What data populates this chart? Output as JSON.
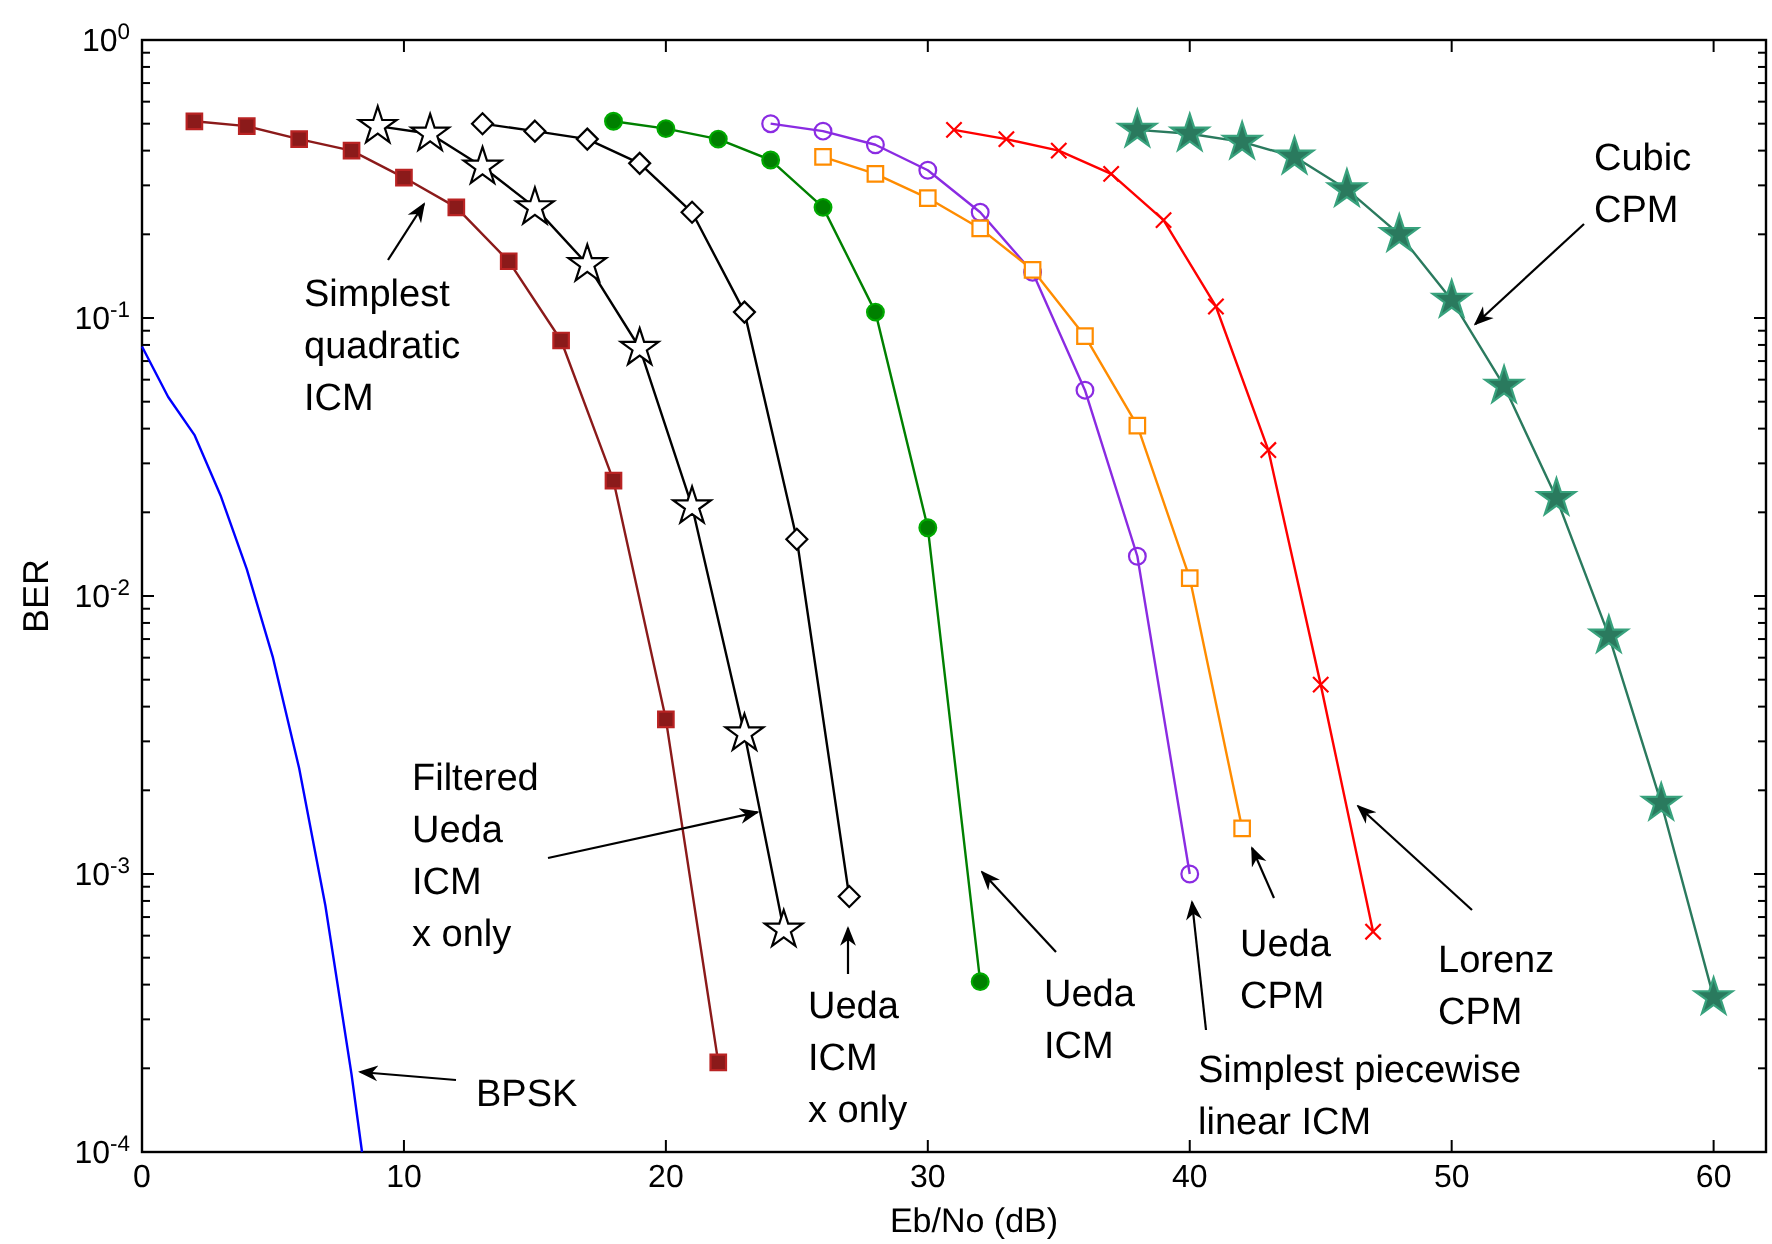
{
  "chart_data": {
    "type": "line",
    "xlabel": "Eb/No (dB)",
    "ylabel": "BER",
    "log": "y",
    "grid": false,
    "xlim": [
      0,
      62
    ],
    "xticks": [
      0,
      10,
      20,
      30,
      40,
      50,
      60
    ],
    "ylim": [
      0.0001,
      1
    ],
    "yticks": [
      {
        "value": 0.0001,
        "label": "10$^{-4}$"
      },
      {
        "value": 0.0002,
        "label": null
      },
      {
        "value": 0.0003,
        "label": null
      },
      {
        "value": 0.0004,
        "label": null
      },
      {
        "value": 0.0005,
        "label": null
      },
      {
        "value": 0.0006,
        "label": null
      },
      {
        "value": 0.0007,
        "label": null
      },
      {
        "value": 0.0008,
        "label": null
      },
      {
        "value": 0.0009,
        "label": null
      },
      {
        "value": 0.001,
        "label": "10$^{-3}$"
      },
      {
        "value": 0.002,
        "label": null
      },
      {
        "value": 0.003,
        "label": null
      },
      {
        "value": 0.004,
        "label": null
      },
      {
        "value": 0.005,
        "label": null
      },
      {
        "value": 0.006,
        "label": null
      },
      {
        "value": 0.007,
        "label": null
      },
      {
        "value": 0.008,
        "label": null
      },
      {
        "value": 0.009,
        "label": null
      },
      {
        "value": 0.01,
        "label": "10$^{-2}$"
      },
      {
        "value": 0.02,
        "label": null
      },
      {
        "value": 0.03,
        "label": null
      },
      {
        "value": 0.04,
        "label": null
      },
      {
        "value": 0.05,
        "label": null
      },
      {
        "value": 0.06,
        "label": null
      },
      {
        "value": 0.07,
        "label": null
      },
      {
        "value": 0.08,
        "label": null
      },
      {
        "value": 0.09,
        "label": null
      },
      {
        "value": 0.1,
        "label": "10$^{-1}$"
      },
      {
        "value": 0.2,
        "label": null
      },
      {
        "value": 0.3,
        "label": null
      },
      {
        "value": 0.4,
        "label": null
      },
      {
        "value": 0.5,
        "label": null
      },
      {
        "value": 0.6,
        "label": null
      },
      {
        "value": 0.7,
        "label": null
      },
      {
        "value": 0.8,
        "label": null
      },
      {
        "value": 0.9,
        "label": null
      },
      {
        "value": 1,
        "label": "10$^{0}$"
      }
    ],
    "series": [
      {
        "color": "#0000ff",
        "marker": "none",
        "x": [
          0,
          1,
          2,
          3,
          4,
          5,
          6,
          7,
          8,
          8.4
        ],
        "values": [
          0.079,
          0.052,
          0.038,
          0.023,
          0.0125,
          0.006,
          0.0024,
          0.00077,
          0.00019,
          0.0001
        ]
      },
      {
        "color": "#8b1a1a",
        "marker": "square",
        "x": [
          2,
          4,
          6,
          8,
          10,
          12,
          14,
          16,
          18,
          20,
          22
        ],
        "values": [
          0.51,
          0.49,
          0.44,
          0.4,
          0.32,
          0.25,
          0.16,
          0.083,
          0.026,
          0.0036,
          0.00021
        ]
      },
      {
        "color": "#000000",
        "marker": "star",
        "x": [
          9,
          11,
          13,
          15,
          17,
          19,
          21,
          23,
          24.5
        ],
        "values": [
          0.49,
          0.46,
          0.35,
          0.25,
          0.156,
          0.078,
          0.021,
          0.0032,
          0.00063
        ]
      },
      {
        "color": "#000000",
        "marker": "diamond",
        "x": [
          13,
          15,
          17,
          19,
          21,
          23,
          25,
          27
        ],
        "values": [
          0.5,
          0.47,
          0.44,
          0.36,
          0.24,
          0.105,
          0.016,
          0.00083
        ]
      },
      {
        "color": "#008000",
        "marker": "circle",
        "x": [
          18,
          20,
          22,
          24,
          26,
          28,
          30,
          32
        ],
        "values": [
          0.51,
          0.48,
          0.44,
          0.37,
          0.25,
          0.105,
          0.0176,
          0.00041
        ]
      },
      {
        "color": "#8a2be2",
        "marker": "circle",
        "x": [
          24,
          26,
          28,
          30,
          32,
          34,
          36,
          38,
          40
        ],
        "values": [
          0.5,
          0.47,
          0.42,
          0.34,
          0.24,
          0.146,
          0.055,
          0.0139,
          0.001
        ]
      },
      {
        "color": "#ff8c00",
        "marker": "square",
        "x": [
          26,
          28,
          30,
          32,
          34,
          36,
          38,
          40,
          42
        ],
        "values": [
          0.38,
          0.33,
          0.27,
          0.21,
          0.149,
          0.086,
          0.041,
          0.0116,
          0.00146
        ]
      },
      {
        "color": "#ff0000",
        "marker": "cross",
        "x": [
          31,
          33,
          35,
          37,
          39,
          41,
          43,
          45,
          47
        ],
        "values": [
          0.475,
          0.44,
          0.4,
          0.33,
          0.225,
          0.11,
          0.0335,
          0.0048,
          0.00062
        ]
      },
      {
        "color": "#2a7a5e",
        "marker": "star",
        "x": [
          38,
          40,
          42,
          44,
          46,
          48,
          50,
          52,
          54,
          56,
          58,
          60
        ],
        "values": [
          0.475,
          0.46,
          0.43,
          0.38,
          0.29,
          0.2,
          0.116,
          0.057,
          0.0225,
          0.0072,
          0.0018,
          0.00036
        ]
      }
    ],
    "annotations": [
      "Simplest\nquadratic\nICM",
      {
        "text": "Cubic\nCPM",
        "x": 50.9,
        "y": 0.095
      },
      {
        "text": "Filtered\nUeda\nICM\nx only",
        "x": 23.5,
        "y": 0.00167
      },
      "Ueda\nICM\nx only",
      "BPSK",
      "Ueda\nICM",
      "Simplest piecewise\nlinear ICM",
      "Ueda\nCPM",
      "Lorenz\nCPM"
    ]
  }
}
